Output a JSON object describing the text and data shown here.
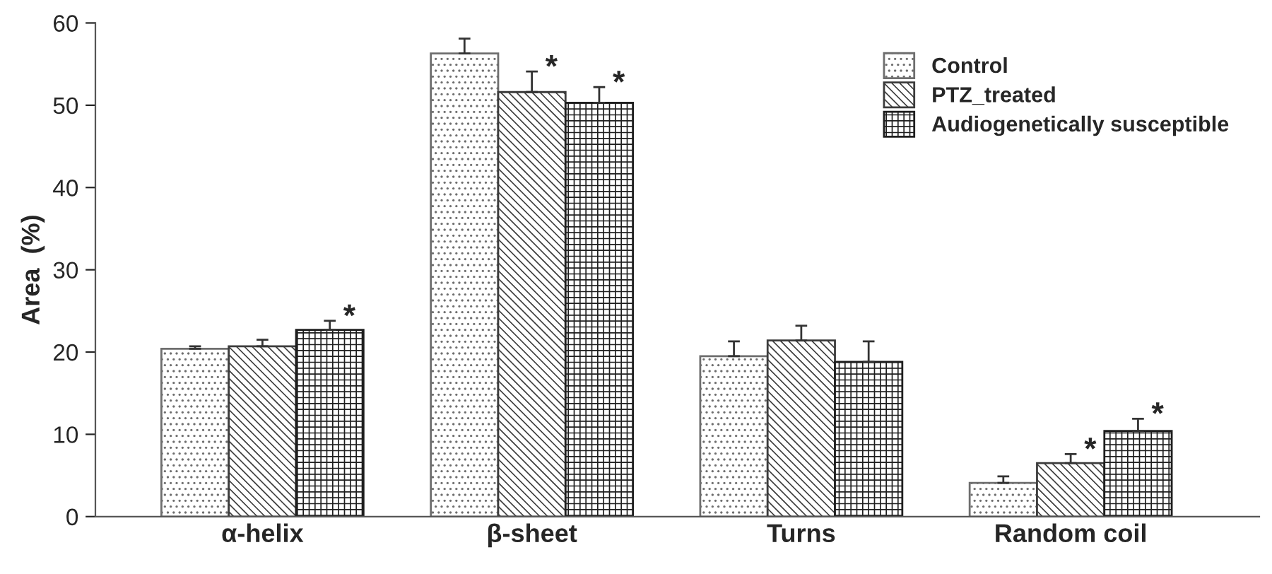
{
  "chart_data": {
    "type": "bar",
    "ylabel": "Area  (%)",
    "categories": [
      "α-helix",
      "β-sheet",
      "Turns",
      "Random coil"
    ],
    "series": [
      {
        "name": "Control",
        "color": "#6e6e6e",
        "values": [
          20.4,
          56.3,
          19.5,
          4.1
        ],
        "errors": [
          0.3,
          1.8,
          1.8,
          0.8
        ]
      },
      {
        "name": "PTZ_treated",
        "color": "#3c3c3c",
        "values": [
          20.7,
          51.6,
          21.4,
          6.5
        ],
        "errors": [
          0.8,
          2.5,
          1.8,
          1.1
        ],
        "value_labels": [
          null,
          "*",
          null,
          "*"
        ]
      },
      {
        "name": "Audiogenetically susceptible",
        "color": "#1e1e1e",
        "values": [
          22.7,
          50.3,
          18.8,
          10.4
        ],
        "errors": [
          1.1,
          1.9,
          2.5,
          1.5
        ],
        "value_labels": [
          "*",
          "*",
          null,
          "*"
        ]
      }
    ],
    "ylim": [
      0,
      60
    ],
    "yticks": [
      0,
      10,
      20,
      30,
      40,
      50,
      60
    ],
    "grid": false,
    "legend": "top right"
  }
}
